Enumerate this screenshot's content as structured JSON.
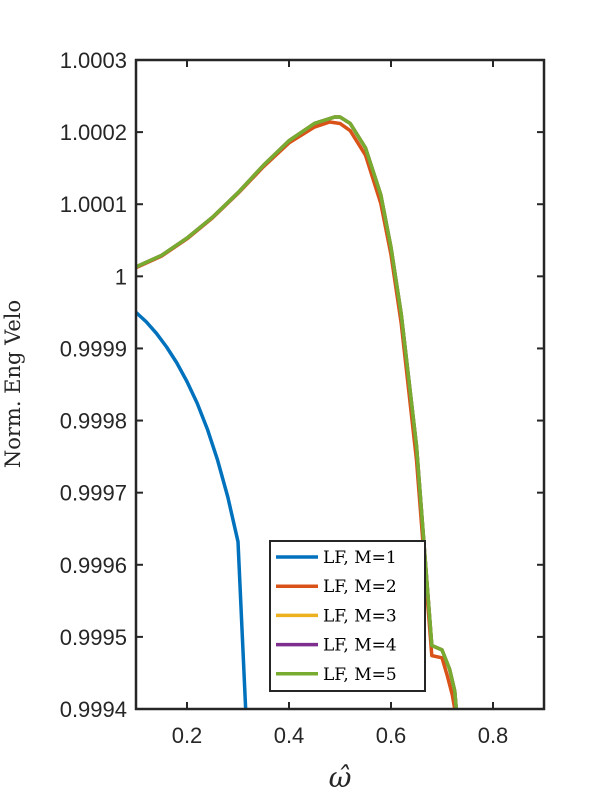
{
  "chart_data": {
    "type": "line",
    "title": "",
    "xlabel": "ω̂",
    "ylabel": "Norm. Eng Velo",
    "xlim": [
      0.1,
      0.9
    ],
    "ylim": [
      0.9994,
      1.0003
    ],
    "xticks": [
      0.2,
      0.4,
      0.6,
      0.8
    ],
    "xtick_labels": [
      "0.2",
      "0.4",
      "0.6",
      "0.8"
    ],
    "yticks": [
      0.9994,
      0.9995,
      0.9996,
      0.9997,
      0.9998,
      0.9999,
      1.0,
      1.0001,
      1.0002,
      1.0003
    ],
    "ytick_labels": [
      "0.9994",
      "0.9995",
      "0.9996",
      "0.9997",
      "0.9998",
      "0.9999",
      "1",
      "1.0001",
      "1.0002",
      "1.0003"
    ],
    "grid": false,
    "legend_position": "bottom-right",
    "series": [
      {
        "name": "LF, M=1",
        "color": "#0072BD",
        "x": [
          0.1,
          0.12,
          0.14,
          0.16,
          0.18,
          0.2,
          0.22,
          0.24,
          0.26,
          0.28,
          0.3,
          0.315
        ],
        "y": [
          0.99995,
          0.999937,
          0.999921,
          0.999902,
          0.99988,
          0.999854,
          0.999824,
          0.999788,
          0.999745,
          0.999694,
          0.999632,
          0.9994
        ]
      },
      {
        "name": "LF, M=2",
        "color": "#D95319",
        "x": [
          0.1,
          0.15,
          0.2,
          0.25,
          0.3,
          0.35,
          0.4,
          0.45,
          0.48,
          0.5,
          0.52,
          0.55,
          0.58,
          0.6,
          0.62,
          0.65,
          0.68,
          0.7,
          0.71,
          0.72,
          0.725
        ],
        "y": [
          1.000012,
          1.000028,
          1.000052,
          1.000081,
          1.000115,
          1.000152,
          1.000185,
          1.000207,
          1.000214,
          1.000212,
          1.000202,
          1.000168,
          1.000101,
          1.00003,
          0.999935,
          0.999745,
          0.999474,
          0.999471,
          0.999447,
          0.99942,
          0.9994
        ]
      },
      {
        "name": "LF, M=3",
        "color": "#EDB120",
        "x": [
          0.1,
          0.15,
          0.2,
          0.25,
          0.3,
          0.35,
          0.4,
          0.45,
          0.49,
          0.5,
          0.52,
          0.55,
          0.58,
          0.6,
          0.62,
          0.65,
          0.68,
          0.7,
          0.715,
          0.725,
          0.728
        ],
        "y": [
          1.000013,
          1.000029,
          1.000053,
          1.000082,
          1.000116,
          1.000154,
          1.000188,
          1.000212,
          1.000221,
          1.000221,
          1.000212,
          1.000178,
          1.000113,
          1.00004,
          0.999948,
          0.999765,
          0.999488,
          0.999482,
          0.999455,
          0.999425,
          0.9994
        ]
      },
      {
        "name": "LF, M=4",
        "color": "#7E2F8E",
        "x": [
          0.1,
          0.15,
          0.2,
          0.25,
          0.3,
          0.35,
          0.4,
          0.45,
          0.49,
          0.5,
          0.52,
          0.55,
          0.58,
          0.6,
          0.62,
          0.65,
          0.68,
          0.7,
          0.715,
          0.725,
          0.728
        ],
        "y": [
          1.000013,
          1.000029,
          1.000053,
          1.000082,
          1.000116,
          1.000154,
          1.000188,
          1.000212,
          1.000221,
          1.000221,
          1.000212,
          1.000178,
          1.000113,
          1.00004,
          0.999948,
          0.999765,
          0.999488,
          0.999482,
          0.999455,
          0.999425,
          0.9994
        ]
      },
      {
        "name": "LF, M=5",
        "color": "#77AC30",
        "x": [
          0.1,
          0.15,
          0.2,
          0.25,
          0.3,
          0.35,
          0.4,
          0.45,
          0.49,
          0.5,
          0.52,
          0.55,
          0.58,
          0.6,
          0.62,
          0.65,
          0.68,
          0.7,
          0.715,
          0.725,
          0.728
        ],
        "y": [
          1.000013,
          1.000029,
          1.000053,
          1.000082,
          1.000116,
          1.000154,
          1.000188,
          1.000212,
          1.000221,
          1.000221,
          1.000212,
          1.000178,
          1.000113,
          1.00004,
          0.999948,
          0.999765,
          0.999488,
          0.999482,
          0.999455,
          0.999425,
          0.9994
        ]
      }
    ]
  }
}
